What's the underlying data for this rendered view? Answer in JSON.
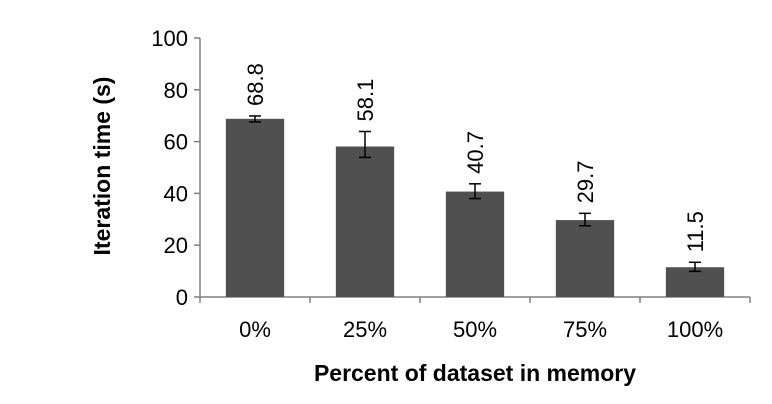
{
  "chart_data": {
    "type": "bar",
    "categories": [
      "0%",
      "25%",
      "50%",
      "75%",
      "100%"
    ],
    "values": [
      68.8,
      58.1,
      40.7,
      29.7,
      11.5
    ],
    "error_bars": [
      [
        67.6,
        69.9
      ],
      [
        53.9,
        63.9
      ],
      [
        38.0,
        43.7
      ],
      [
        27.5,
        32.3
      ],
      [
        9.9,
        13.4
      ]
    ],
    "data_labels": [
      "68.8",
      "58.1",
      "40.7",
      "29.7",
      "11.5"
    ],
    "title": "",
    "xlabel": "Percent of dataset in memory",
    "ylabel": "Iteration time (s)",
    "ylim": [
      0,
      100
    ],
    "yticks": [
      0,
      20,
      40,
      60,
      80,
      100
    ],
    "grid": false,
    "legend": "none",
    "colors": {
      "bar": "#505050",
      "axis": "#808080",
      "error_bar": "#000000"
    }
  }
}
